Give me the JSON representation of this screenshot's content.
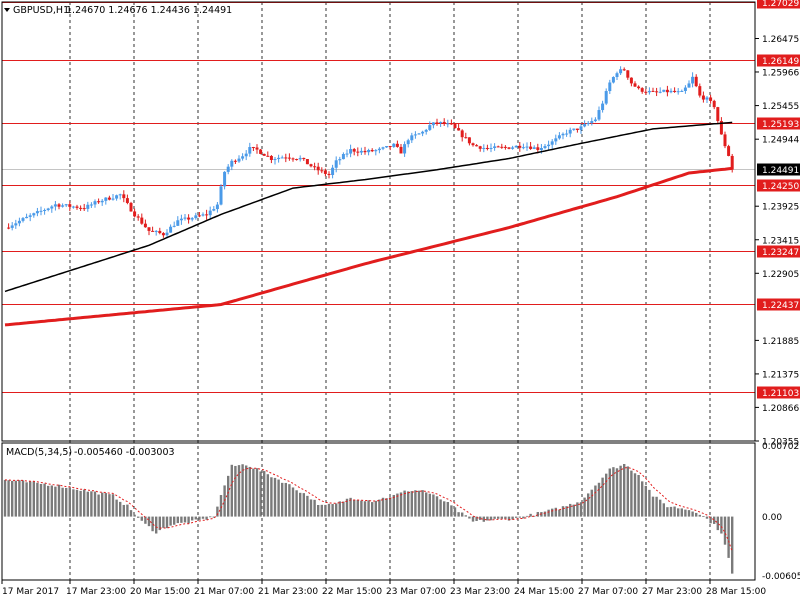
{
  "header": {
    "symbol": "GBPUSD,H1",
    "ohlc": "1.24670 1.24676 1.24436 1.24491"
  },
  "macd_header": {
    "name": "MACD(5,34,5)",
    "values": "-0.005460 -0.003003"
  },
  "colors": {
    "up_candle": "#4a9ae8",
    "down_candle": "#e11d1d",
    "level_line": "#e11d1d",
    "ma_fast": "#000000",
    "ma_slow": "#e11d1d",
    "histogram": "#7a7a7a",
    "signal": "#e11d1d",
    "current_price_tag": "#000000"
  },
  "chart_data": {
    "type": "candlestick",
    "symbol": "GBPUSD",
    "timeframe": "H1",
    "price_axis_ticks": [
      "1.26475",
      "1.25966",
      "1.25455",
      "1.24944",
      "1.23925",
      "1.23415",
      "1.22905",
      "1.21885",
      "1.21375",
      "1.20866",
      "1.20355"
    ],
    "price_range": [
      1.20355,
      1.2703
    ],
    "time_axis_labels": [
      "17 Mar 2017",
      "17 Mar 23:00",
      "20 Mar 15:00",
      "21 Mar 07:00",
      "21 Mar 23:00",
      "22 Mar 15:00",
      "23 Mar 07:00",
      "23 Mar 23:00",
      "24 Mar 15:00",
      "27 Mar 07:00",
      "27 Mar 23:00",
      "28 Mar 15:00"
    ],
    "horizontal_levels": [
      "1.27029",
      "1.26149",
      "1.25193",
      "1.24250",
      "1.23247",
      "1.22437",
      "1.21103"
    ],
    "current_price": "1.24491",
    "close_path_anchors": [
      [
        0,
        1.236
      ],
      [
        6,
        1.2375
      ],
      [
        14,
        1.2395
      ],
      [
        22,
        1.239
      ],
      [
        26,
        1.24
      ],
      [
        32,
        1.241
      ],
      [
        36,
        1.238
      ],
      [
        40,
        1.2355
      ],
      [
        44,
        1.235
      ],
      [
        48,
        1.237
      ],
      [
        52,
        1.2375
      ],
      [
        56,
        1.238
      ],
      [
        59,
        1.2395
      ],
      [
        61,
        1.2445
      ],
      [
        63,
        1.246
      ],
      [
        66,
        1.247
      ],
      [
        68,
        1.248
      ],
      [
        70,
        1.2478
      ],
      [
        74,
        1.2465
      ],
      [
        78,
        1.2468
      ],
      [
        82,
        1.2465
      ],
      [
        86,
        1.245
      ],
      [
        90,
        1.244
      ],
      [
        92,
        1.246
      ],
      [
        96,
        1.2478
      ],
      [
        100,
        1.2475
      ],
      [
        104,
        1.2478
      ],
      [
        108,
        1.2485
      ],
      [
        110,
        1.2475
      ],
      [
        112,
        1.2495
      ],
      [
        116,
        1.2505
      ],
      [
        118,
        1.2515
      ],
      [
        120,
        1.252
      ],
      [
        124,
        1.2515
      ],
      [
        126,
        1.2505
      ],
      [
        130,
        1.2485
      ],
      [
        134,
        1.248
      ],
      [
        140,
        1.2482
      ],
      [
        144,
        1.2485
      ],
      [
        148,
        1.248
      ],
      [
        152,
        1.249
      ],
      [
        156,
        1.2505
      ],
      [
        160,
        1.2512
      ],
      [
        164,
        1.2525
      ],
      [
        166,
        1.255
      ],
      [
        168,
        1.258
      ],
      [
        170,
        1.2597
      ],
      [
        172,
        1.26
      ],
      [
        174,
        1.258
      ],
      [
        176,
        1.257
      ],
      [
        180,
        1.2565
      ],
      [
        184,
        1.2567
      ],
      [
        188,
        1.2565
      ],
      [
        190,
        1.2578
      ],
      [
        191,
        1.2588
      ],
      [
        193,
        1.256
      ],
      [
        195,
        1.2555
      ],
      [
        197,
        1.2545
      ],
      [
        199,
        1.25
      ],
      [
        201,
        1.247
      ],
      [
        202,
        1.2449
      ]
    ],
    "moving_average_black": [
      [
        0,
        1.2263
      ],
      [
        40,
        1.2333
      ],
      [
        60,
        1.238
      ],
      [
        80,
        1.242
      ],
      [
        100,
        1.2433
      ],
      [
        120,
        1.2448
      ],
      [
        140,
        1.2465
      ],
      [
        160,
        1.2488
      ],
      [
        180,
        1.251
      ],
      [
        202,
        1.252
      ]
    ],
    "moving_average_red": [
      [
        0,
        1.2212
      ],
      [
        60,
        1.2243
      ],
      [
        100,
        1.2305
      ],
      [
        140,
        1.236
      ],
      [
        170,
        1.2407
      ],
      [
        190,
        1.2443
      ],
      [
        202,
        1.245
      ]
    ],
    "macd": {
      "range": [
        -0.006055,
        0.007027
      ],
      "axis_labels": [
        "0.007027",
        "0.00",
        "-0.006055"
      ],
      "histogram_anchors": [
        [
          0,
          0.0035
        ],
        [
          14,
          0.003
        ],
        [
          22,
          0.0025
        ],
        [
          30,
          0.002
        ],
        [
          34,
          0.001
        ],
        [
          38,
          -0.0005
        ],
        [
          42,
          -0.0015
        ],
        [
          46,
          -0.0008
        ],
        [
          52,
          -0.0005
        ],
        [
          56,
          -0.0002
        ],
        [
          58,
          0.0
        ],
        [
          61,
          0.003
        ],
        [
          63,
          0.0048
        ],
        [
          67,
          0.005
        ],
        [
          72,
          0.0042
        ],
        [
          78,
          0.0032
        ],
        [
          84,
          0.002
        ],
        [
          88,
          0.001
        ],
        [
          92,
          0.0012
        ],
        [
          96,
          0.0018
        ],
        [
          102,
          0.0015
        ],
        [
          108,
          0.002
        ],
        [
          112,
          0.0025
        ],
        [
          116,
          0.0025
        ],
        [
          122,
          0.0015
        ],
        [
          126,
          0.0005
        ],
        [
          130,
          -0.0005
        ],
        [
          136,
          -0.0003
        ],
        [
          142,
          -0.0002
        ],
        [
          148,
          0.0003
        ],
        [
          154,
          0.0008
        ],
        [
          160,
          0.0015
        ],
        [
          164,
          0.003
        ],
        [
          168,
          0.0045
        ],
        [
          172,
          0.005
        ],
        [
          176,
          0.004
        ],
        [
          180,
          0.002
        ],
        [
          184,
          0.001
        ],
        [
          188,
          0.0008
        ],
        [
          192,
          0.0005
        ],
        [
          196,
          -0.0005
        ],
        [
          199,
          -0.0015
        ],
        [
          201,
          -0.004
        ],
        [
          202,
          -0.0055
        ]
      ]
    }
  }
}
